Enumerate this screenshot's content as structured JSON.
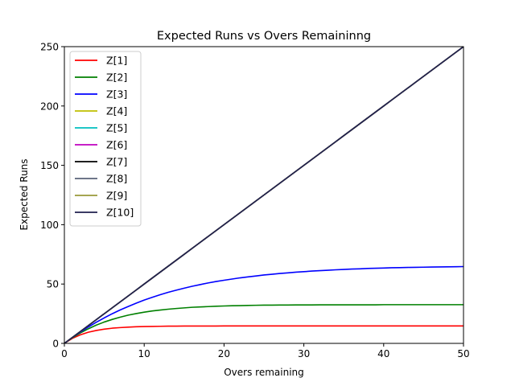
{
  "chart_data": {
    "type": "line",
    "title": "Expected Runs vs Overs Remaininng",
    "xlabel": "Overs remaining",
    "ylabel": "Expected Runs",
    "xlim": [
      0,
      50
    ],
    "ylim": [
      0,
      250
    ],
    "xticks": [
      0,
      10,
      20,
      30,
      40,
      50
    ],
    "yticks": [
      0,
      50,
      100,
      150,
      200,
      250
    ],
    "grid": false,
    "legend_position": "top-left",
    "x": [
      0,
      1,
      2,
      3,
      4,
      5,
      6,
      7,
      8,
      9,
      10,
      11,
      12,
      13,
      14,
      15,
      16,
      17,
      18,
      19,
      20,
      21,
      22,
      23,
      24,
      25,
      26,
      27,
      28,
      29,
      30,
      31,
      32,
      33,
      34,
      35,
      36,
      37,
      38,
      39,
      40,
      41,
      42,
      43,
      44,
      45,
      46,
      47,
      48,
      49,
      50
    ],
    "series": [
      {
        "name": "Z[1]",
        "color": "#ff0000",
        "values": [
          0,
          4.2,
          7.2,
          9.4,
          10.9,
          12.0,
          12.8,
          13.3,
          13.7,
          14.0,
          14.2,
          14.3,
          14.4,
          14.5,
          14.55,
          14.6,
          14.6,
          14.6,
          14.6,
          14.6,
          14.7,
          14.7,
          14.7,
          14.7,
          14.7,
          14.7,
          14.7,
          14.7,
          14.7,
          14.7,
          14.7,
          14.7,
          14.7,
          14.7,
          14.7,
          14.7,
          14.7,
          14.7,
          14.7,
          14.7,
          14.7,
          14.7,
          14.7,
          14.7,
          14.7,
          14.7,
          14.7,
          14.7,
          14.7,
          14.7,
          14.7
        ]
      },
      {
        "name": "Z[2]",
        "color": "#008000",
        "values": [
          0,
          4.7,
          8.8,
          12.3,
          15.4,
          18.0,
          20.2,
          22.1,
          23.8,
          25.1,
          26.3,
          27.3,
          28.1,
          28.8,
          29.4,
          29.9,
          30.4,
          30.7,
          31.0,
          31.3,
          31.5,
          31.7,
          31.8,
          32.0,
          32.1,
          32.2,
          32.2,
          32.3,
          32.3,
          32.4,
          32.4,
          32.4,
          32.5,
          32.5,
          32.5,
          32.5,
          32.5,
          32.5,
          32.5,
          32.5,
          32.6,
          32.6,
          32.6,
          32.6,
          32.6,
          32.6,
          32.6,
          32.6,
          32.6,
          32.6,
          32.6
        ]
      },
      {
        "name": "Z[3]",
        "color": "#0000ff",
        "values": [
          0,
          4.9,
          9.5,
          13.8,
          17.8,
          21.5,
          25.0,
          28.2,
          31.1,
          33.9,
          36.5,
          38.8,
          41.0,
          43.0,
          44.8,
          46.5,
          48.1,
          49.5,
          50.9,
          52.1,
          53.2,
          54.2,
          55.2,
          56.0,
          56.8,
          57.6,
          58.2,
          58.9,
          59.4,
          60.0,
          60.4,
          60.9,
          61.3,
          61.6,
          62.0,
          62.3,
          62.6,
          62.8,
          63.1,
          63.3,
          63.5,
          63.7,
          63.8,
          64.0,
          64.1,
          64.2,
          64.3,
          64.4,
          64.5,
          64.6,
          64.7
        ]
      },
      {
        "name": "Z[4]",
        "color": "#bfbf00",
        "values": [
          0,
          5,
          10,
          15,
          20,
          25,
          30,
          35,
          40,
          45,
          50,
          55,
          60,
          65,
          70,
          75,
          80,
          85,
          90,
          95,
          100,
          105,
          110,
          115,
          120,
          125,
          130,
          135,
          140,
          145,
          150,
          155,
          160,
          165,
          170,
          175,
          180,
          185,
          190,
          195,
          200,
          205,
          210,
          215,
          220,
          225,
          230,
          235,
          240,
          245,
          250
        ]
      },
      {
        "name": "Z[5]",
        "color": "#00bfbf",
        "values": [
          0,
          5,
          10,
          15,
          20,
          25,
          30,
          35,
          40,
          45,
          50,
          55,
          60,
          65,
          70,
          75,
          80,
          85,
          90,
          95,
          100,
          105,
          110,
          115,
          120,
          125,
          130,
          135,
          140,
          145,
          150,
          155,
          160,
          165,
          170,
          175,
          180,
          185,
          190,
          195,
          200,
          205,
          210,
          215,
          220,
          225,
          230,
          235,
          240,
          245,
          250
        ]
      },
      {
        "name": "Z[6]",
        "color": "#bf00bf",
        "values": [
          0,
          5,
          10,
          15,
          20,
          25,
          30,
          35,
          40,
          45,
          50,
          55,
          60,
          65,
          70,
          75,
          80,
          85,
          90,
          95,
          100,
          105,
          110,
          115,
          120,
          125,
          130,
          135,
          140,
          145,
          150,
          155,
          160,
          165,
          170,
          175,
          180,
          185,
          190,
          195,
          200,
          205,
          210,
          215,
          220,
          225,
          230,
          235,
          240,
          245,
          250
        ]
      },
      {
        "name": "Z[7]",
        "color": "#000000",
        "values": [
          0,
          5,
          10,
          15,
          20,
          25,
          30,
          35,
          40,
          45,
          50,
          55,
          60,
          65,
          70,
          75,
          80,
          85,
          90,
          95,
          100,
          105,
          110,
          115,
          120,
          125,
          130,
          135,
          140,
          145,
          150,
          155,
          160,
          165,
          170,
          175,
          180,
          185,
          190,
          195,
          200,
          205,
          210,
          215,
          220,
          225,
          230,
          235,
          240,
          245,
          250
        ]
      },
      {
        "name": "Z[8]",
        "color": "#5a6378",
        "values": [
          0,
          5,
          10,
          15,
          20,
          25,
          30,
          35,
          40,
          45,
          50,
          55,
          60,
          65,
          70,
          75,
          80,
          85,
          90,
          95,
          100,
          105,
          110,
          115,
          120,
          125,
          130,
          135,
          140,
          145,
          150,
          155,
          160,
          165,
          170,
          175,
          180,
          185,
          190,
          195,
          200,
          205,
          210,
          215,
          220,
          225,
          230,
          235,
          240,
          245,
          250
        ]
      },
      {
        "name": "Z[9]",
        "color": "#9a9a3a",
        "values": [
          0,
          5,
          10,
          15,
          20,
          25,
          30,
          35,
          40,
          45,
          50,
          55,
          60,
          65,
          70,
          75,
          80,
          85,
          90,
          95,
          100,
          105,
          110,
          115,
          120,
          125,
          130,
          135,
          140,
          145,
          150,
          155,
          160,
          165,
          170,
          175,
          180,
          185,
          190,
          195,
          200,
          205,
          210,
          215,
          220,
          225,
          230,
          235,
          240,
          245,
          250
        ]
      },
      {
        "name": "Z[10]",
        "color": "#1f1f4e",
        "values": [
          0,
          5,
          10,
          15,
          20,
          25,
          30,
          35,
          40,
          45,
          50,
          55,
          60,
          65,
          70,
          75,
          80,
          85,
          90,
          95,
          100,
          105,
          110,
          115,
          120,
          125,
          130,
          135,
          140,
          145,
          150,
          155,
          160,
          165,
          170,
          175,
          180,
          185,
          190,
          195,
          200,
          205,
          210,
          215,
          220,
          225,
          230,
          235,
          240,
          245,
          250
        ]
      }
    ]
  }
}
